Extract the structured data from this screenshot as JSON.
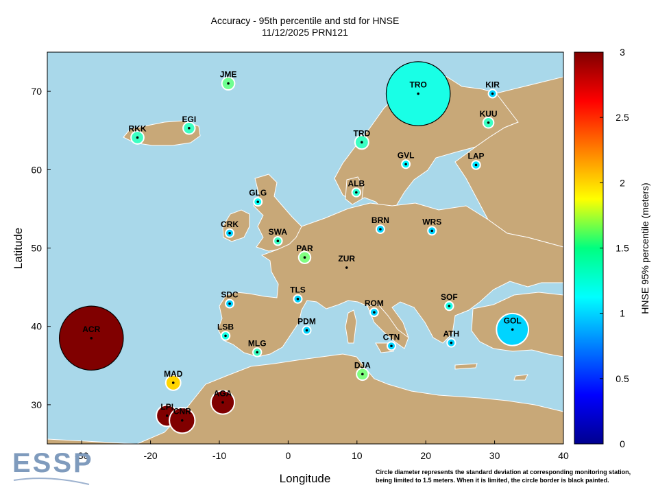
{
  "chart_data": {
    "type": "scatter",
    "title": "Accuracy - 95th percentile and std for HNSE",
    "subtitle": "11/12/2025 PRN121",
    "xlabel": "Longitude",
    "ylabel": "Latitude",
    "xlim": [
      -35,
      40
    ],
    "ylim": [
      25,
      75
    ],
    "xticks": [
      -30,
      -20,
      -10,
      0,
      10,
      20,
      30,
      40
    ],
    "yticks": [
      30,
      40,
      50,
      60,
      70
    ],
    "grid": false,
    "colorbar": {
      "label": "HNSE 95% percentile (meters)",
      "range": [
        0,
        3
      ],
      "ticks": [
        "0",
        "0.5",
        "1",
        "1.5",
        "2",
        "2.5",
        "3"
      ],
      "colormap": "jet"
    },
    "stations": [
      {
        "name": "JME",
        "lon": -8.7,
        "lat": 71.0,
        "p95": 1.45,
        "std": 0.3
      },
      {
        "name": "TRO",
        "lon": 18.9,
        "lat": 69.7,
        "p95": 1.2,
        "std": 1.5
      },
      {
        "name": "KIR",
        "lon": 20.2,
        "lat": 67.8,
        "p95": 1.0,
        "std": 0.18,
        "plot_lon": 29.7,
        "plot_lat": 69.7
      },
      {
        "name": "KUU",
        "lon": 29.1,
        "lat": 66.0,
        "p95": 1.3,
        "std": 0.25
      },
      {
        "name": "RKK",
        "lon": -21.9,
        "lat": 64.1,
        "p95": 1.3,
        "std": 0.3
      },
      {
        "name": "EGI",
        "lon": -14.4,
        "lat": 65.3,
        "p95": 1.3,
        "std": 0.28
      },
      {
        "name": "TRD",
        "lon": 10.7,
        "lat": 63.5,
        "p95": 1.3,
        "std": 0.32
      },
      {
        "name": "GVL",
        "lon": 17.1,
        "lat": 60.7,
        "p95": 1.1,
        "std": 0.18
      },
      {
        "name": "LAP",
        "lon": 27.3,
        "lat": 60.6,
        "p95": 1.05,
        "std": 0.2
      },
      {
        "name": "ALB",
        "lon": 9.9,
        "lat": 57.1,
        "p95": 1.25,
        "std": 0.2
      },
      {
        "name": "GLG",
        "lon": -4.4,
        "lat": 55.9,
        "p95": 1.15,
        "std": 0.18
      },
      {
        "name": "CRK",
        "lon": -8.5,
        "lat": 51.9,
        "p95": 1.0,
        "std": 0.18
      },
      {
        "name": "BRN",
        "lon": 13.4,
        "lat": 52.4,
        "p95": 1.0,
        "std": 0.18
      },
      {
        "name": "WRS",
        "lon": 20.9,
        "lat": 52.2,
        "p95": 1.0,
        "std": 0.18
      },
      {
        "name": "SWA",
        "lon": -1.5,
        "lat": 50.9,
        "p95": 1.3,
        "std": 0.2
      },
      {
        "name": "PAR",
        "lon": 2.4,
        "lat": 48.8,
        "p95": 1.5,
        "std": 0.28
      },
      {
        "name": "ZUR",
        "lon": 8.5,
        "lat": 47.5,
        "p95": null,
        "std": null
      },
      {
        "name": "SDC",
        "lon": -8.5,
        "lat": 42.9,
        "p95": 1.0,
        "std": 0.15
      },
      {
        "name": "TLS",
        "lon": 1.4,
        "lat": 43.5,
        "p95": 1.0,
        "std": 0.18
      },
      {
        "name": "ROM",
        "lon": 12.5,
        "lat": 41.8,
        "p95": 1.0,
        "std": 0.15
      },
      {
        "name": "SOF",
        "lon": 23.4,
        "lat": 42.6,
        "p95": 1.2,
        "std": 0.2
      },
      {
        "name": "GOL",
        "lon": 32.6,
        "lat": 39.6,
        "p95": 1.0,
        "std": 0.75
      },
      {
        "name": "PDM",
        "lon": 2.7,
        "lat": 39.5,
        "p95": 1.0,
        "std": 0.15
      },
      {
        "name": "LSB",
        "lon": -9.1,
        "lat": 38.8,
        "p95": 1.2,
        "std": 0.2
      },
      {
        "name": "ATH",
        "lon": 23.7,
        "lat": 37.9,
        "p95": 1.0,
        "std": 0.15
      },
      {
        "name": "MLG",
        "lon": -4.5,
        "lat": 36.7,
        "p95": 1.3,
        "std": 0.2
      },
      {
        "name": "CTN",
        "lon": 15.0,
        "lat": 37.5,
        "p95": 1.0,
        "std": 0.15
      },
      {
        "name": "DJA",
        "lon": 10.8,
        "lat": 33.9,
        "p95": 1.5,
        "std": 0.28
      },
      {
        "name": "ACR",
        "lon": -28.6,
        "lat": 38.5,
        "p95": 3.0,
        "std": 1.5
      },
      {
        "name": "MAD",
        "lon": -16.7,
        "lat": 32.8,
        "p95": 2.0,
        "std": 0.35
      },
      {
        "name": "LPI",
        "lon": -17.6,
        "lat": 28.6,
        "p95": 3.0,
        "std": 0.5
      },
      {
        "name": "CNR",
        "lon": -15.4,
        "lat": 28.0,
        "p95": 3.0,
        "std": 0.6
      },
      {
        "name": "AGA",
        "lon": -9.5,
        "lat": 30.3,
        "p95": 3.0,
        "std": 0.55
      }
    ]
  },
  "logo_text": "ESSP",
  "footnote_line1": "Circle diameter represents the standard deviation at corresponding monitoring station,",
  "footnote_line2": "being limited to 1.5 meters. When it is limited, the circle border is black painted.",
  "colors": {
    "sea": "#a9d8ea",
    "land": "#c8a878",
    "border": "#ffffff"
  }
}
